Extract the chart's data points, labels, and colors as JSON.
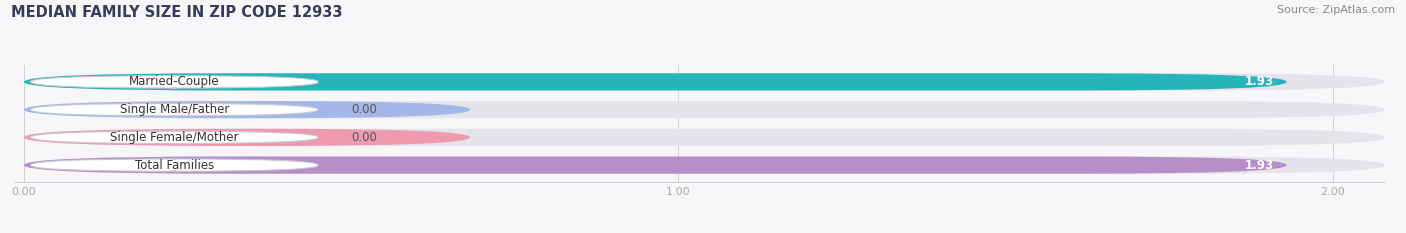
{
  "title": "MEDIAN FAMILY SIZE IN ZIP CODE 12933",
  "source": "Source: ZipAtlas.com",
  "categories": [
    "Married-Couple",
    "Single Male/Father",
    "Single Female/Mother",
    "Total Families"
  ],
  "values": [
    1.93,
    0.0,
    0.0,
    1.93
  ],
  "bar_colors": [
    "#26b5ba",
    "#a3b8e8",
    "#f09ab0",
    "#b88ec8"
  ],
  "track_color": "#e4e4ea",
  "label_bg": "#ffffff",
  "xlim_min": 0.0,
  "xlim_max": 2.0,
  "xticks": [
    0.0,
    1.0,
    2.0
  ],
  "xtick_labels": [
    "0.00",
    "1.00",
    "2.00"
  ],
  "figsize": [
    14.06,
    2.33
  ],
  "dpi": 100,
  "title_fontsize": 10.5,
  "source_fontsize": 8,
  "label_fontsize": 8.5,
  "value_fontsize": 8.5,
  "bar_height": 0.62,
  "bar_gap": 1.0,
  "background_color": "#f7f7fa",
  "title_color": "#3a3a5c",
  "source_color": "#888888",
  "label_text_color": "#333333",
  "grid_color": "#d0d0d8"
}
